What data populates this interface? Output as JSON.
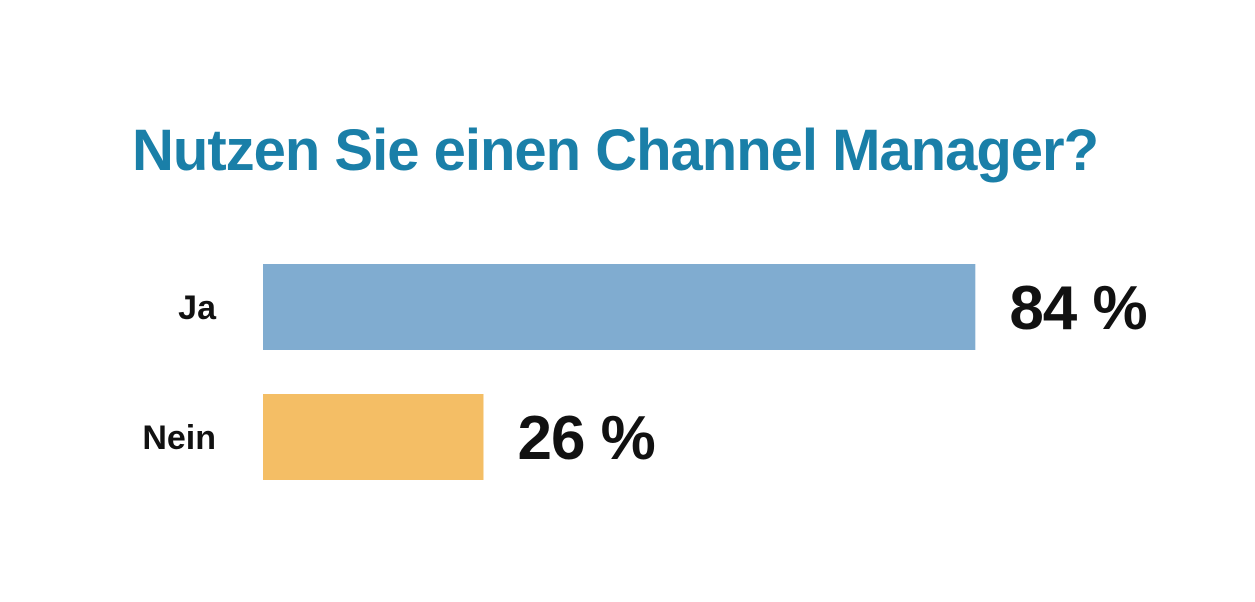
{
  "chart_data": {
    "type": "bar",
    "orientation": "horizontal",
    "title": "Nutzen Sie einen Channel Manager?",
    "categories": [
      "Ja",
      "Nein"
    ],
    "values": [
      84,
      26
    ],
    "value_labels": [
      "84 %",
      "26 %"
    ],
    "unit": "%",
    "xlim": [
      0,
      100
    ],
    "grid": false,
    "legend": "none",
    "colors": {
      "title": "#1a7fa8",
      "bars": [
        "#80acd0",
        "#f4be65"
      ],
      "labels": "#111111"
    }
  }
}
